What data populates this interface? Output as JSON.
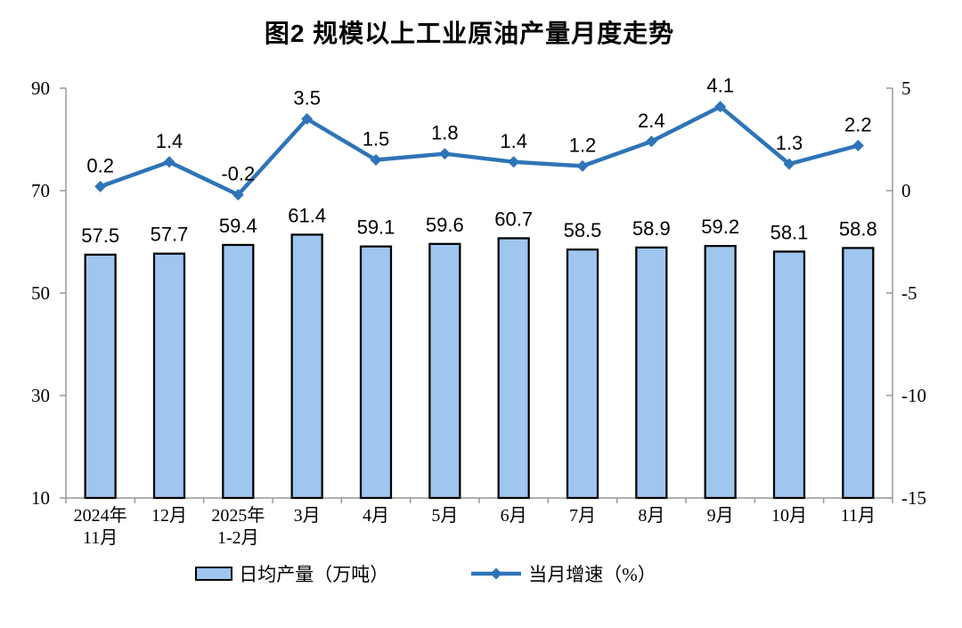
{
  "page": {
    "background": "#ffffff"
  },
  "colors": {
    "bar_fill": "#9EC6EE",
    "bar_border": "#000000",
    "line": "#2E74B8",
    "axis": "#999999",
    "text": "#000000"
  },
  "chart_data": {
    "type": "combo",
    "title": "图2 规模以上工业原油产量月度走势",
    "categories": [
      [
        "2024年",
        "11月"
      ],
      [
        "12月"
      ],
      [
        "2025年",
        "1-2月"
      ],
      [
        "3月"
      ],
      [
        "4月"
      ],
      [
        "5月"
      ],
      [
        "6月"
      ],
      [
        "7月"
      ],
      [
        "8月"
      ],
      [
        "9月"
      ],
      [
        "10月"
      ],
      [
        "11月"
      ]
    ],
    "series": [
      {
        "name": "日均产量（万吨）",
        "type": "bar",
        "axis": "left",
        "values": [
          57.5,
          57.7,
          59.4,
          61.4,
          59.1,
          59.6,
          60.7,
          58.5,
          58.9,
          59.2,
          58.1,
          58.8
        ]
      },
      {
        "name": "当月增速（%）",
        "type": "line",
        "axis": "right",
        "values": [
          0.2,
          1.4,
          -0.2,
          3.5,
          1.5,
          1.8,
          1.4,
          1.2,
          2.4,
          4.1,
          1.3,
          2.2
        ]
      }
    ],
    "left_axis": {
      "min": 10,
      "max": 90,
      "ticks": [
        90,
        70,
        50,
        30,
        10
      ]
    },
    "right_axis": {
      "min": -15,
      "max": 5,
      "ticks": [
        5,
        0,
        -5,
        -10,
        -15
      ]
    },
    "grid": false,
    "data_labels": true,
    "legend_position": "bottom"
  }
}
